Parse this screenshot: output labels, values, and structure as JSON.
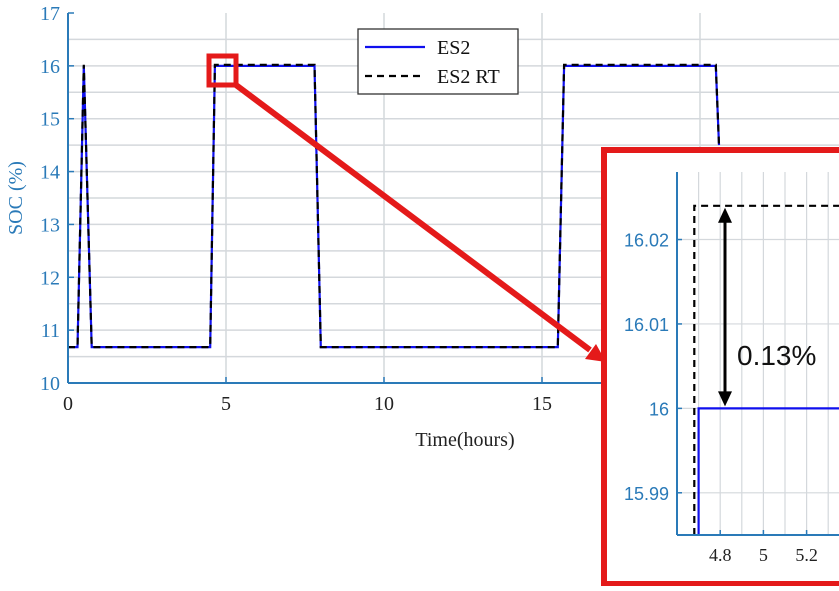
{
  "colors": {
    "axis": "#2a7ab8",
    "grid": "#d4d8dc",
    "es2": "#1010ee",
    "es2_rt": "#000000",
    "highlight": "#e41a1a"
  },
  "chart_data": [
    {
      "type": "line",
      "xlabel": "Time(hours)",
      "ylabel": "SOC (%)",
      "xlim": [
        0,
        24
      ],
      "ylim": [
        10,
        17
      ],
      "x_ticks": [
        "0",
        "5",
        "10",
        "15"
      ],
      "y_ticks": [
        "10",
        "11",
        "12",
        "13",
        "14",
        "15",
        "16",
        "17"
      ],
      "grid": true,
      "legend_position": "top-center",
      "series": [
        {
          "name": "ES2",
          "x": [
            0,
            0.3,
            0.5,
            0.75,
            1.0,
            4.5,
            4.65,
            4.8,
            7.8,
            8.0,
            8.2,
            15.5,
            15.7,
            15.9,
            20.5,
            20.6
          ],
          "y": [
            10.68,
            10.68,
            16.0,
            10.68,
            10.68,
            10.68,
            16.0,
            16.0,
            16.0,
            10.68,
            10.68,
            10.68,
            16.0,
            16.0,
            16.0,
            14.5
          ]
        },
        {
          "name": "ES2 RT",
          "x": [
            0,
            0.3,
            0.5,
            0.75,
            1.0,
            4.5,
            4.65,
            4.8,
            7.8,
            8.0,
            8.2,
            15.5,
            15.7,
            15.9,
            20.5,
            20.6
          ],
          "y": [
            10.68,
            10.68,
            16.02,
            10.68,
            10.68,
            10.68,
            16.02,
            16.02,
            16.02,
            10.68,
            10.68,
            10.68,
            16.02,
            16.02,
            16.02,
            14.5
          ]
        }
      ],
      "annotations": [
        "zoom box at t≈4.8 h, SOC≈16%"
      ]
    },
    {
      "type": "line",
      "xlim": [
        4.6,
        5.35
      ],
      "ylim": [
        15.985,
        16.028
      ],
      "x_ticks": [
        "4.8",
        "5",
        "5.2"
      ],
      "y_ticks": [
        "15.99",
        "16",
        "16.01",
        "16.02"
      ],
      "grid": true,
      "series": [
        {
          "name": "ES2",
          "x": [
            4.7,
            4.7,
            5.35
          ],
          "y": [
            15.985,
            16.0,
            16.0
          ]
        },
        {
          "name": "ES2 RT",
          "x": [
            4.68,
            4.68,
            5.35
          ],
          "y": [
            15.985,
            16.024,
            16.024
          ]
        }
      ],
      "annotation": "0.13%"
    }
  ]
}
